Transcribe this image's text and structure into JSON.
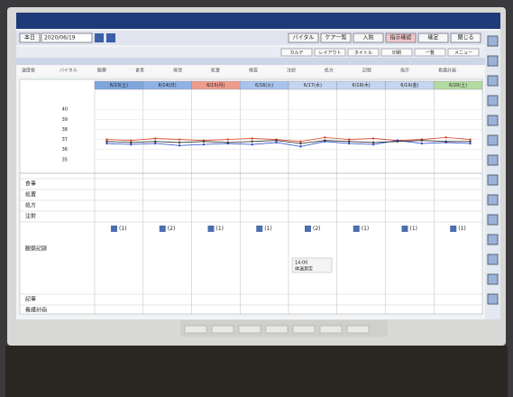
{
  "toolbar": {
    "today": "本日",
    "date": "2020/06/19",
    "buttons": [
      "バイタル",
      "ケア一覧",
      "入院",
      "指示確認",
      "確定",
      "閉じる"
    ]
  },
  "subbar": {
    "buttons": [
      "カルテ",
      "レイアウト",
      "タイトル",
      "印刷",
      "一覧",
      "メニュー"
    ]
  },
  "tabs": [
    "温度板",
    "バイタル",
    "観察",
    "食事",
    "排泄",
    "処置",
    "検査",
    "注射",
    "処方",
    "記録",
    "指示",
    "看護計画"
  ],
  "columns": [
    {
      "label": "6/13(土)",
      "color": "#7ea6de"
    },
    {
      "label": "6/14(日)",
      "color": "#8fb2e4"
    },
    {
      "label": "6/15(月)",
      "color": "#ee9a8c"
    },
    {
      "label": "6/16(火)",
      "color": "#a9c4ec"
    },
    {
      "label": "6/17(水)",
      "color": "#c4d6f0"
    },
    {
      "label": "6/18(木)",
      "color": "#c4d6f0"
    },
    {
      "label": "6/19(金)",
      "color": "#c4d6f0"
    },
    {
      "label": "6/20(土)",
      "color": "#b4dca0"
    }
  ],
  "rows": [
    "食事",
    "処置",
    "処方",
    "注射",
    "観察記録",
    "記事",
    "看護計画"
  ],
  "vitals": {
    "ylim": [
      34,
      41
    ],
    "yticks": [
      35,
      36,
      37,
      38,
      39,
      40
    ],
    "series": [
      {
        "color": "#d9472b",
        "values": [
          37.0,
          36.9,
          37.1,
          37.0,
          36.9,
          37.0,
          37.1,
          37.0,
          36.8,
          37.2,
          37.0,
          37.1,
          36.9,
          37.0,
          37.2,
          37.0
        ]
      },
      {
        "color": "#2b49c8",
        "values": [
          36.6,
          36.5,
          36.6,
          36.4,
          36.5,
          36.6,
          36.5,
          36.7,
          36.3,
          36.8,
          36.6,
          36.5,
          36.9,
          36.6,
          36.7,
          36.6
        ]
      },
      {
        "color": "#333333",
        "values": [
          36.8,
          36.7,
          36.8,
          36.7,
          36.8,
          36.7,
          36.8,
          36.9,
          36.6,
          36.9,
          36.8,
          36.7,
          36.8,
          36.9,
          36.8,
          36.8
        ]
      }
    ]
  },
  "observations": [
    "(1)",
    "(2)",
    "(1)",
    "(1)",
    "(2)",
    "(1)",
    "(1)",
    "(1)"
  ],
  "notes": [
    "14:00",
    "体温測定"
  ]
}
